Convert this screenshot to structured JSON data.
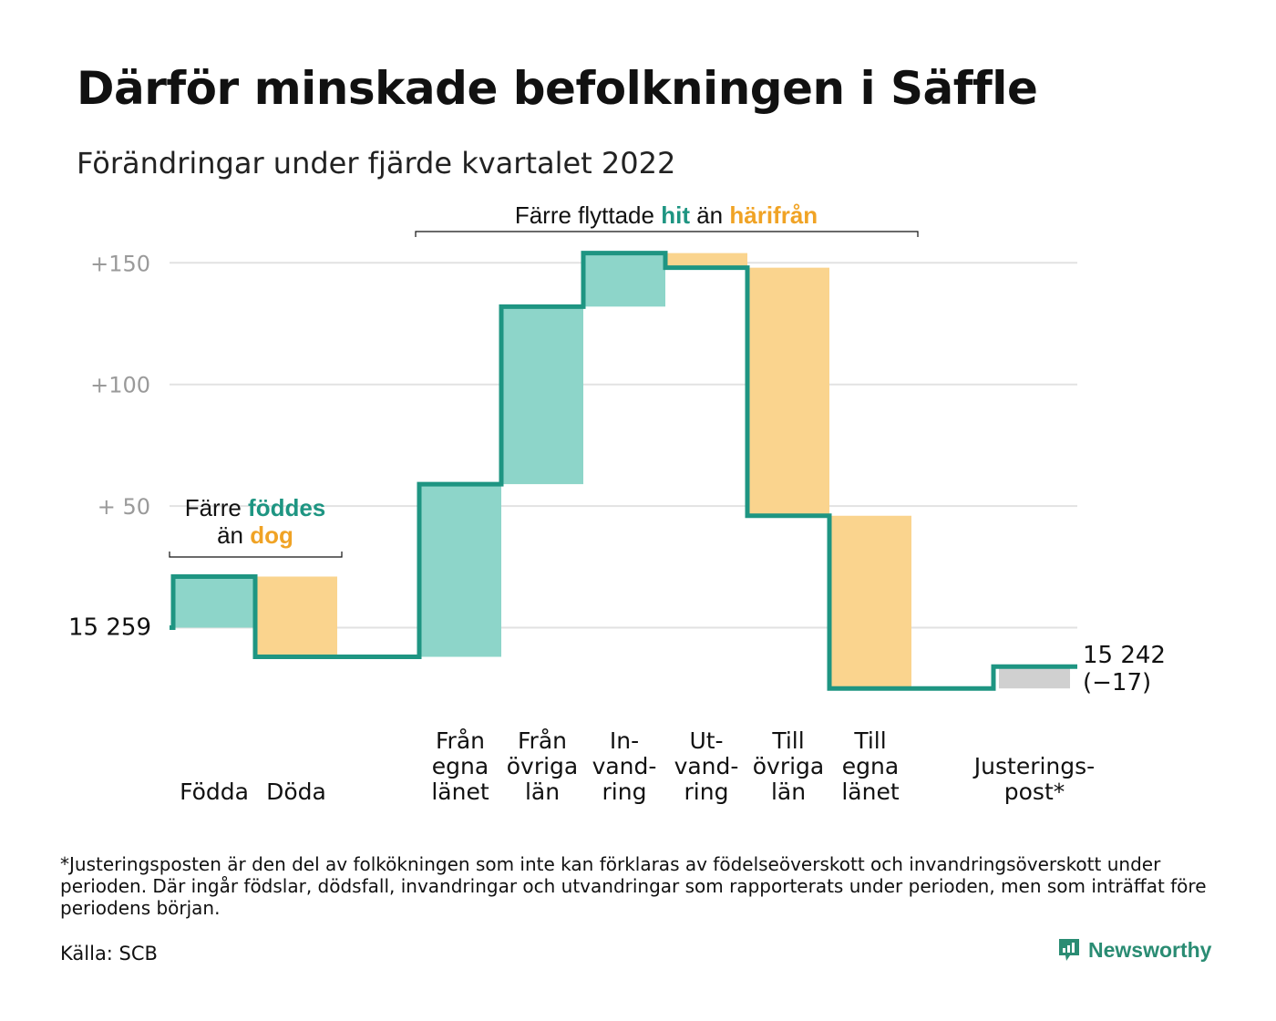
{
  "title": "Därför minskade befolkningen i Säffle",
  "subtitle": "Förändringar under fjärde kvartalet 2022",
  "footnote": "*Justeringsposten är den del av folkökningen som inte kan förklaras av födelseöverskott och invandringsöverskott under perioden. Där ingår födslar, dödsfall, invandringar och utvandringar som rapporterats under perioden, men som inträffat före periodens början.",
  "source": "Källa: SCB",
  "brand": {
    "name": "Newsworthy",
    "icon": "newsworthy-logo-icon"
  },
  "colors": {
    "increase": "#8dd5c9",
    "decrease": "#fad48e",
    "adjustment": "#d0d0d0",
    "line": "#1e9582",
    "accent_teal": "#1e9582",
    "accent_orange": "#f0a325",
    "grid": "#e2e2e2"
  },
  "annotations": {
    "births_deaths": {
      "line1": "Färre ",
      "teal": "föddes",
      "line2": "än ",
      "orange": "dog"
    },
    "migration": {
      "prefix": "Färre flyttade ",
      "teal": "hit",
      "middle": " än ",
      "orange": "härifrån"
    }
  },
  "chart_data": {
    "type": "waterfall",
    "title": "Därför minskade befolkningen i Säffle",
    "subtitle": "Förändringar under fjärde kvartalet 2022",
    "start": {
      "value": 15259,
      "label": "15 259"
    },
    "end": {
      "value": 15242,
      "label": "15 242",
      "change_label": "(−17)"
    },
    "y_axis": {
      "min": -28,
      "max": 157,
      "ticks": [
        {
          "value": 50,
          "label": "+ 50"
        },
        {
          "value": 100,
          "label": "+100"
        },
        {
          "value": 150,
          "label": "+150"
        }
      ],
      "baseline": 0,
      "grid": true
    },
    "categories": [
      {
        "label": [
          "Födda"
        ],
        "change": 21,
        "kind": "increase"
      },
      {
        "label": [
          "Döda"
        ],
        "change": -33,
        "kind": "decrease"
      },
      {
        "label": [],
        "change": 0,
        "kind": "gap"
      },
      {
        "label": [
          "Från",
          "egna",
          "länet"
        ],
        "change": 71,
        "kind": "increase"
      },
      {
        "label": [
          "Från",
          "övriga",
          "län"
        ],
        "change": 73,
        "kind": "increase"
      },
      {
        "label": [
          "In-",
          "vand-",
          "ring"
        ],
        "change": 22,
        "kind": "increase"
      },
      {
        "label": [
          "Ut-",
          "vand-",
          "ring"
        ],
        "change": -6,
        "kind": "decrease"
      },
      {
        "label": [
          "Till",
          "övriga",
          "län"
        ],
        "change": -102,
        "kind": "decrease"
      },
      {
        "label": [
          "Till",
          "egna",
          "länet"
        ],
        "change": -71,
        "kind": "decrease"
      },
      {
        "label": [],
        "change": 0,
        "kind": "gap"
      },
      {
        "label": [
          "Justerings-",
          "post*"
        ],
        "change": 9,
        "kind": "adjustment"
      }
    ]
  }
}
